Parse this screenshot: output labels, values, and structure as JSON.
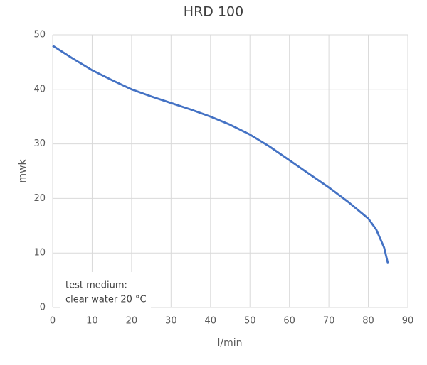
{
  "chart_data": {
    "type": "line",
    "title": "HRD 100",
    "x_label": "l/min",
    "y_label": "mwk",
    "x": [
      0,
      5,
      10,
      15,
      20,
      25,
      30,
      35,
      40,
      45,
      50,
      55,
      60,
      65,
      70,
      75,
      80,
      82,
      84,
      85
    ],
    "series": [
      {
        "name": "HRD 100",
        "color": "#4472c4",
        "values": [
          48,
          45.7,
          43.5,
          41.7,
          40,
          38.7,
          37.5,
          36.3,
          35,
          33.5,
          31.7,
          29.5,
          27,
          24.5,
          22,
          19.3,
          16.3,
          14.3,
          11,
          8
        ]
      }
    ],
    "xlim": [
      0,
      90
    ],
    "xticks": [
      0,
      10,
      20,
      30,
      40,
      50,
      60,
      70,
      80,
      90
    ],
    "ylim": [
      0,
      50
    ],
    "yticks": [
      0,
      10,
      20,
      30,
      40,
      50
    ],
    "grid": true,
    "annotation": [
      "test medium:",
      "clear water 20 °C"
    ]
  }
}
